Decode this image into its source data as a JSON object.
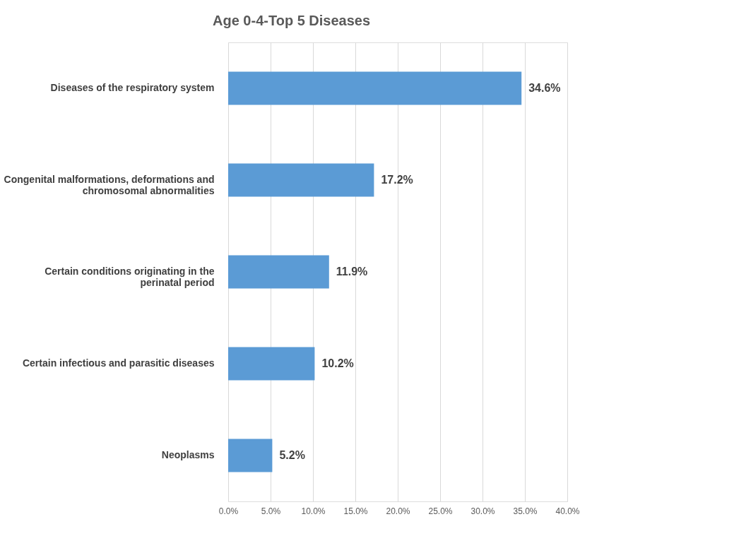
{
  "chart_data": {
    "type": "bar",
    "orientation": "horizontal",
    "title": "Age 0-4-Top 5 Diseases",
    "categories": [
      "Diseases of the respiratory system",
      "Congenital malformations, deformations and chromosomal abnormalities",
      "Certain conditions originating in the perinatal period",
      "Certain infectious and parasitic diseases",
      "Neoplasms"
    ],
    "values": [
      34.6,
      17.2,
      11.9,
      10.2,
      5.2
    ],
    "value_labels": [
      "34.6%",
      "17.2%",
      "11.9%",
      "10.2%",
      "5.2%"
    ],
    "color": "#5b9bd5",
    "xlim": [
      0,
      40
    ],
    "xticks": [
      {
        "value": 0,
        "label": "0.0%"
      },
      {
        "value": 5,
        "label": "5.0%"
      },
      {
        "value": 10,
        "label": "10.0%"
      },
      {
        "value": 15,
        "label": "15.0%"
      },
      {
        "value": 20,
        "label": "20.0%"
      },
      {
        "value": 25,
        "label": "25.0%"
      },
      {
        "value": 30,
        "label": "30.0%"
      },
      {
        "value": 35,
        "label": "35.0%"
      },
      {
        "value": 40,
        "label": "40.0%"
      }
    ],
    "grid": "x"
  }
}
